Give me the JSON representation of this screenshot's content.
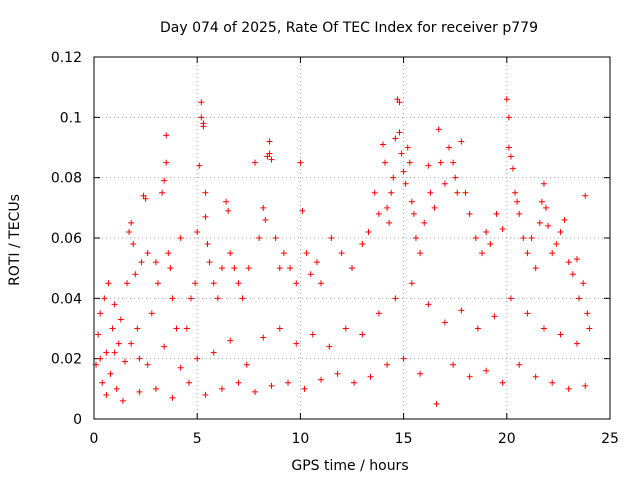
{
  "chart_data": {
    "type": "scatter",
    "title": "Day 074 of 2025, Rate Of TEC Index for receiver p779",
    "xlabel": "GPS time / hours",
    "ylabel": "ROTI / TECUs",
    "xlim": [
      0,
      25
    ],
    "ylim": [
      0,
      0.12
    ],
    "x_ticks": [
      0,
      5,
      10,
      15,
      20,
      25
    ],
    "x_tick_labels": [
      "0",
      "5",
      "10",
      "15",
      "20",
      "25"
    ],
    "y_ticks": [
      0,
      0.02,
      0.04,
      0.06,
      0.08,
      0.1,
      0.12
    ],
    "y_tick_labels": [
      "0",
      "0.02",
      "0.04",
      "0.06",
      "0.08",
      "0.1",
      "0.12"
    ],
    "grid": true,
    "marker": "+",
    "series_color": "#ff0000",
    "series": [
      {
        "name": "ROTI",
        "points": [
          [
            0.1,
            0.018
          ],
          [
            0.2,
            0.028
          ],
          [
            0.3,
            0.035
          ],
          [
            0.4,
            0.012
          ],
          [
            0.5,
            0.04
          ],
          [
            0.6,
            0.022
          ],
          [
            0.7,
            0.045
          ],
          [
            0.8,
            0.015
          ],
          [
            0.9,
            0.03
          ],
          [
            1.0,
            0.038
          ],
          [
            1.1,
            0.01
          ],
          [
            1.2,
            0.025
          ],
          [
            1.3,
            0.033
          ],
          [
            1.5,
            0.019
          ],
          [
            1.6,
            0.045
          ],
          [
            1.7,
            0.062
          ],
          [
            1.8,
            0.065
          ],
          [
            1.9,
            0.058
          ],
          [
            2.0,
            0.048
          ],
          [
            2.1,
            0.03
          ],
          [
            2.2,
            0.02
          ],
          [
            2.3,
            0.052
          ],
          [
            2.4,
            0.074
          ],
          [
            2.5,
            0.073
          ],
          [
            2.6,
            0.055
          ],
          [
            2.8,
            0.035
          ],
          [
            3.0,
            0.052
          ],
          [
            3.1,
            0.045
          ],
          [
            3.3,
            0.075
          ],
          [
            3.4,
            0.079
          ],
          [
            3.5,
            0.094
          ],
          [
            3.5,
            0.085
          ],
          [
            3.6,
            0.055
          ],
          [
            3.7,
            0.05
          ],
          [
            3.8,
            0.04
          ],
          [
            4.0,
            0.03
          ],
          [
            4.2,
            0.06
          ],
          [
            4.5,
            0.03
          ],
          [
            4.7,
            0.04
          ],
          [
            4.9,
            0.045
          ],
          [
            5.0,
            0.062
          ],
          [
            5.1,
            0.084
          ],
          [
            5.2,
            0.105
          ],
          [
            5.2,
            0.1
          ],
          [
            5.3,
            0.098
          ],
          [
            5.3,
            0.097
          ],
          [
            5.4,
            0.075
          ],
          [
            5.4,
            0.067
          ],
          [
            5.5,
            0.058
          ],
          [
            5.6,
            0.052
          ],
          [
            5.8,
            0.045
          ],
          [
            6.0,
            0.04
          ],
          [
            6.2,
            0.05
          ],
          [
            6.4,
            0.072
          ],
          [
            6.5,
            0.069
          ],
          [
            6.6,
            0.055
          ],
          [
            6.8,
            0.05
          ],
          [
            7.0,
            0.045
          ],
          [
            7.2,
            0.04
          ],
          [
            7.5,
            0.05
          ],
          [
            7.8,
            0.085
          ],
          [
            8.0,
            0.06
          ],
          [
            8.2,
            0.07
          ],
          [
            8.3,
            0.066
          ],
          [
            8.4,
            0.087
          ],
          [
            8.5,
            0.092
          ],
          [
            8.5,
            0.088
          ],
          [
            8.6,
            0.086
          ],
          [
            8.8,
            0.06
          ],
          [
            9.0,
            0.05
          ],
          [
            9.2,
            0.055
          ],
          [
            9.5,
            0.05
          ],
          [
            9.8,
            0.045
          ],
          [
            10.0,
            0.085
          ],
          [
            10.1,
            0.069
          ],
          [
            10.3,
            0.055
          ],
          [
            10.5,
            0.048
          ],
          [
            10.8,
            0.052
          ],
          [
            11.0,
            0.045
          ],
          [
            11.5,
            0.06
          ],
          [
            12.0,
            0.055
          ],
          [
            12.5,
            0.05
          ],
          [
            13.0,
            0.058
          ],
          [
            13.3,
            0.062
          ],
          [
            13.6,
            0.075
          ],
          [
            13.8,
            0.068
          ],
          [
            14.0,
            0.091
          ],
          [
            14.1,
            0.085
          ],
          [
            14.2,
            0.07
          ],
          [
            14.3,
            0.065
          ],
          [
            14.4,
            0.075
          ],
          [
            14.5,
            0.08
          ],
          [
            14.6,
            0.093
          ],
          [
            14.7,
            0.106
          ],
          [
            14.8,
            0.105
          ],
          [
            14.8,
            0.095
          ],
          [
            14.9,
            0.088
          ],
          [
            15.0,
            0.082
          ],
          [
            15.1,
            0.078
          ],
          [
            15.2,
            0.09
          ],
          [
            15.3,
            0.085
          ],
          [
            15.4,
            0.072
          ],
          [
            15.5,
            0.068
          ],
          [
            15.6,
            0.06
          ],
          [
            15.8,
            0.055
          ],
          [
            16.0,
            0.065
          ],
          [
            16.2,
            0.084
          ],
          [
            16.3,
            0.075
          ],
          [
            16.5,
            0.07
          ],
          [
            16.7,
            0.096
          ],
          [
            16.8,
            0.085
          ],
          [
            17.0,
            0.078
          ],
          [
            17.2,
            0.09
          ],
          [
            17.4,
            0.085
          ],
          [
            17.5,
            0.08
          ],
          [
            17.6,
            0.075
          ],
          [
            17.8,
            0.092
          ],
          [
            18.0,
            0.075
          ],
          [
            18.2,
            0.068
          ],
          [
            18.5,
            0.06
          ],
          [
            18.8,
            0.055
          ],
          [
            19.0,
            0.062
          ],
          [
            19.2,
            0.058
          ],
          [
            19.5,
            0.068
          ],
          [
            19.8,
            0.063
          ],
          [
            20.0,
            0.106
          ],
          [
            20.1,
            0.1
          ],
          [
            20.1,
            0.09
          ],
          [
            20.2,
            0.087
          ],
          [
            20.3,
            0.083
          ],
          [
            20.4,
            0.075
          ],
          [
            20.5,
            0.072
          ],
          [
            20.6,
            0.068
          ],
          [
            20.8,
            0.06
          ],
          [
            21.0,
            0.055
          ],
          [
            21.2,
            0.06
          ],
          [
            21.4,
            0.05
          ],
          [
            21.6,
            0.065
          ],
          [
            21.7,
            0.072
          ],
          [
            21.8,
            0.078
          ],
          [
            21.9,
            0.07
          ],
          [
            22.0,
            0.064
          ],
          [
            22.2,
            0.055
          ],
          [
            22.4,
            0.058
          ],
          [
            22.6,
            0.062
          ],
          [
            22.8,
            0.066
          ],
          [
            23.0,
            0.052
          ],
          [
            23.2,
            0.048
          ],
          [
            23.4,
            0.053
          ],
          [
            23.5,
            0.04
          ],
          [
            23.7,
            0.045
          ],
          [
            23.8,
            0.074
          ],
          [
            23.9,
            0.035
          ],
          [
            24.0,
            0.03
          ],
          [
            0.3,
            0.02
          ],
          [
            0.6,
            0.008
          ],
          [
            1.0,
            0.022
          ],
          [
            1.4,
            0.006
          ],
          [
            1.8,
            0.025
          ],
          [
            2.2,
            0.009
          ],
          [
            2.6,
            0.018
          ],
          [
            3.0,
            0.01
          ],
          [
            3.4,
            0.024
          ],
          [
            3.8,
            0.007
          ],
          [
            4.2,
            0.017
          ],
          [
            4.6,
            0.012
          ],
          [
            5.0,
            0.02
          ],
          [
            5.4,
            0.008
          ],
          [
            5.8,
            0.022
          ],
          [
            6.2,
            0.01
          ],
          [
            6.6,
            0.026
          ],
          [
            7.0,
            0.012
          ],
          [
            7.4,
            0.018
          ],
          [
            7.8,
            0.009
          ],
          [
            8.2,
            0.027
          ],
          [
            8.6,
            0.011
          ],
          [
            9.0,
            0.03
          ],
          [
            9.4,
            0.012
          ],
          [
            9.8,
            0.025
          ],
          [
            10.2,
            0.01
          ],
          [
            10.6,
            0.028
          ],
          [
            11.0,
            0.013
          ],
          [
            11.4,
            0.024
          ],
          [
            11.8,
            0.015
          ],
          [
            12.2,
            0.03
          ],
          [
            12.6,
            0.012
          ],
          [
            13.0,
            0.028
          ],
          [
            13.4,
            0.014
          ],
          [
            13.8,
            0.035
          ],
          [
            14.2,
            0.018
          ],
          [
            14.6,
            0.04
          ],
          [
            15.0,
            0.02
          ],
          [
            15.4,
            0.045
          ],
          [
            15.8,
            0.015
          ],
          [
            16.2,
            0.038
          ],
          [
            16.6,
            0.005
          ],
          [
            17.0,
            0.032
          ],
          [
            17.4,
            0.018
          ],
          [
            17.8,
            0.036
          ],
          [
            18.2,
            0.014
          ],
          [
            18.6,
            0.03
          ],
          [
            19.0,
            0.016
          ],
          [
            19.4,
            0.034
          ],
          [
            19.8,
            0.012
          ],
          [
            20.2,
            0.04
          ],
          [
            20.6,
            0.018
          ],
          [
            21.0,
            0.035
          ],
          [
            21.4,
            0.014
          ],
          [
            21.8,
            0.03
          ],
          [
            22.2,
            0.012
          ],
          [
            22.6,
            0.028
          ],
          [
            23.0,
            0.01
          ],
          [
            23.4,
            0.025
          ],
          [
            23.8,
            0.011
          ]
        ]
      }
    ]
  }
}
